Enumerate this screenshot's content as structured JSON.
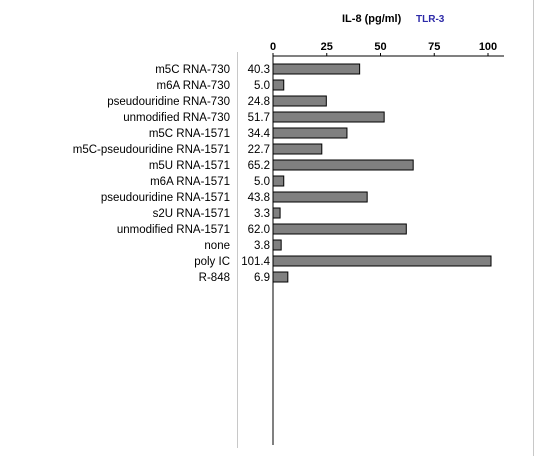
{
  "chart_data": {
    "type": "bar",
    "orientation": "horizontal",
    "title": "IL-8 (pg/ml)",
    "subtitle": "TLR-3",
    "xlim": [
      0,
      100
    ],
    "x_ticks": [
      "0",
      "25",
      "50",
      "75",
      "100"
    ],
    "categories": [
      "m5C RNA-730",
      "m6A RNA-730",
      "pseudouridine RNA-730",
      "unmodified RNA-730",
      "m5C RNA-1571",
      "m5C-pseudouridine RNA-1571",
      "m5U RNA-1571",
      "m6A RNA-1571",
      "pseudouridine RNA-1571",
      "s2U RNA-1571",
      "unmodified RNA-1571",
      "none",
      "poly IC",
      "R-848"
    ],
    "values": [
      40.3,
      5.0,
      24.8,
      51.7,
      34.4,
      22.7,
      65.2,
      5.0,
      43.8,
      3.3,
      62.0,
      3.8,
      101.4,
      6.9
    ],
    "value_labels": [
      "40.3",
      "5.0",
      "24.8",
      "51.7",
      "34.4",
      "22.7",
      "65.2",
      "5.0",
      "43.8",
      "3.3",
      "62.0",
      "3.8",
      "101.4",
      "6.9"
    ],
    "bar_color": "#808080",
    "bar_border": "#000000",
    "subtitle_color": "#2d2aa8",
    "grid": false
  }
}
